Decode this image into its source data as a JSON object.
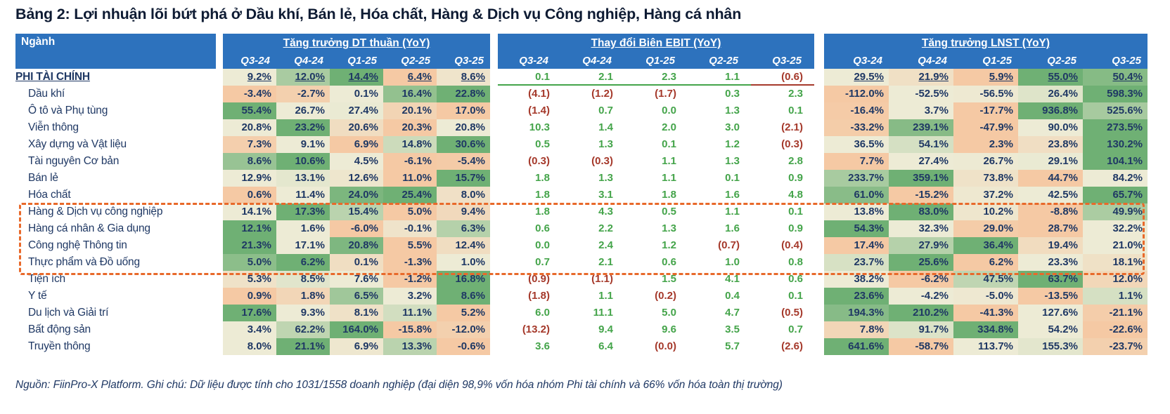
{
  "title": "Bảng 2: Lợi nhuận lõi bứt phá ở Dầu khí, Bán lẻ, Hóa chất, Hàng & Dịch vụ Công nghiệp, Hàng cá nhân",
  "footer": "Nguồn: FiinPro-X Platform. Ghi chú: Dữ liệu được tính cho 1031/1558 doanh nghiệp (đại diện 98,9% vốn hóa nhóm Phi tài chính và 66% vốn hóa toàn thị trường)",
  "colors": {
    "header_blue": "#2D72BD",
    "navy_text": "#1F3864",
    "positive_green_text": "#44A44A",
    "negative_red_text": "#A5392B",
    "heat_min_peach": "#F5C9A4",
    "heat_mid_cream": "#EDEBD5",
    "heat_max_green": "#6FB074",
    "highlight_dash_orange": "#E8692A"
  },
  "chart_data": {
    "type": "table",
    "subtype": "heatmap-table",
    "corner_label": "Ngành",
    "groups": [
      {
        "title": "Tăng trưởng DT thuần (YoY)",
        "columns": [
          "Q3-24",
          "Q4-24",
          "Q1-25",
          "Q2-25",
          "Q3-25"
        ]
      },
      {
        "title": "Thay đổi Biên EBIT (YoY)",
        "columns": [
          "Q3-24",
          "Q4-24",
          "Q1-25",
          "Q2-25",
          "Q3-25"
        ]
      },
      {
        "title": "Tăng trưởng LNST (YoY)",
        "columns": [
          "Q3-24",
          "Q4-24",
          "Q1-25",
          "Q2-25",
          "Q3-25"
        ]
      }
    ],
    "heatmap_note": "groups 1 and 3 use a per-row 3-color scale (min=peach, median=cream, max=green); group 2 has white cells with green text for positive and dark-red parenthesized text for negative",
    "rows": [
      {
        "name": "PHI TÀI CHÍNH",
        "emphasis": true,
        "highlighted": false,
        "revenue": [
          "9.2%",
          "12.0%",
          "14.4%",
          "6.4%",
          "8.6%"
        ],
        "ebit": [
          "0.1",
          "2.1",
          "2.3",
          "1.1",
          "(0.6)"
        ],
        "lnst": [
          "29.5%",
          "21.9%",
          "5.9%",
          "55.0%",
          "50.4%"
        ]
      },
      {
        "name": "Dầu khí",
        "emphasis": false,
        "highlighted": false,
        "revenue": [
          "-3.4%",
          "-2.7%",
          "0.1%",
          "16.4%",
          "22.8%"
        ],
        "ebit": [
          "(4.1)",
          "(1.2)",
          "(1.7)",
          "0.3",
          "2.3"
        ],
        "lnst": [
          "-112.0%",
          "-52.5%",
          "-56.5%",
          "26.4%",
          "598.3%"
        ]
      },
      {
        "name": "Ô tô và Phụ tùng",
        "emphasis": false,
        "highlighted": false,
        "revenue": [
          "55.4%",
          "26.7%",
          "27.4%",
          "20.1%",
          "17.0%"
        ],
        "ebit": [
          "(1.4)",
          "0.7",
          "0.0",
          "1.3",
          "0.1"
        ],
        "lnst": [
          "-16.4%",
          "3.7%",
          "-17.7%",
          "936.8%",
          "525.6%"
        ]
      },
      {
        "name": "Viễn thông",
        "emphasis": false,
        "highlighted": false,
        "revenue": [
          "20.8%",
          "23.2%",
          "20.6%",
          "20.3%",
          "20.8%"
        ],
        "ebit": [
          "10.3",
          "1.4",
          "2.0",
          "3.0",
          "(2.1)"
        ],
        "lnst": [
          "-33.2%",
          "239.1%",
          "-47.9%",
          "90.0%",
          "273.5%"
        ]
      },
      {
        "name": "Xây dựng và Vật liệu",
        "emphasis": false,
        "highlighted": false,
        "revenue": [
          "7.3%",
          "9.1%",
          "6.9%",
          "14.8%",
          "30.6%"
        ],
        "ebit": [
          "0.5",
          "1.3",
          "0.1",
          "1.2",
          "(0.3)"
        ],
        "lnst": [
          "36.5%",
          "54.1%",
          "2.3%",
          "23.8%",
          "130.2%"
        ]
      },
      {
        "name": "Tài nguyên Cơ bản",
        "emphasis": false,
        "highlighted": false,
        "revenue": [
          "8.6%",
          "10.6%",
          "4.5%",
          "-6.1%",
          "-5.4%"
        ],
        "ebit": [
          "(0.3)",
          "(0.3)",
          "1.1",
          "1.3",
          "2.8"
        ],
        "lnst": [
          "7.7%",
          "27.4%",
          "26.7%",
          "29.1%",
          "104.1%"
        ]
      },
      {
        "name": "Bán lẻ",
        "emphasis": false,
        "highlighted": true,
        "revenue": [
          "12.9%",
          "13.1%",
          "12.6%",
          "11.0%",
          "15.7%"
        ],
        "ebit": [
          "1.8",
          "1.3",
          "1.1",
          "0.1",
          "0.9"
        ],
        "lnst": [
          "233.7%",
          "359.1%",
          "73.8%",
          "44.7%",
          "84.2%"
        ]
      },
      {
        "name": "Hóa chất",
        "emphasis": false,
        "highlighted": true,
        "revenue": [
          "0.6%",
          "11.4%",
          "24.0%",
          "25.4%",
          "8.0%"
        ],
        "ebit": [
          "1.8",
          "3.1",
          "1.8",
          "1.6",
          "4.8"
        ],
        "lnst": [
          "61.0%",
          "-15.2%",
          "37.2%",
          "42.5%",
          "65.7%"
        ]
      },
      {
        "name": "Hàng & Dịch vụ công nghiệp",
        "emphasis": false,
        "highlighted": true,
        "revenue": [
          "14.1%",
          "17.3%",
          "15.4%",
          "5.0%",
          "9.4%"
        ],
        "ebit": [
          "1.8",
          "4.3",
          "0.5",
          "1.1",
          "0.1"
        ],
        "lnst": [
          "13.8%",
          "83.0%",
          "10.2%",
          "-8.8%",
          "49.9%"
        ]
      },
      {
        "name": "Hàng cá nhân & Gia dụng",
        "emphasis": false,
        "highlighted": true,
        "revenue": [
          "12.1%",
          "1.6%",
          "-6.0%",
          "-0.1%",
          "6.3%"
        ],
        "ebit": [
          "0.6",
          "2.2",
          "1.3",
          "1.6",
          "0.9"
        ],
        "lnst": [
          "54.3%",
          "32.3%",
          "29.0%",
          "28.7%",
          "32.2%"
        ]
      },
      {
        "name": "Công nghệ Thông tin",
        "emphasis": false,
        "highlighted": false,
        "revenue": [
          "21.3%",
          "17.1%",
          "20.8%",
          "5.5%",
          "12.4%"
        ],
        "ebit": [
          "0.0",
          "2.4",
          "1.2",
          "(0.7)",
          "(0.4)"
        ],
        "lnst": [
          "17.4%",
          "27.9%",
          "36.4%",
          "19.4%",
          "21.0%"
        ]
      },
      {
        "name": "Thực phẩm và Đồ uống",
        "emphasis": false,
        "highlighted": false,
        "revenue": [
          "5.0%",
          "6.2%",
          "0.1%",
          "-1.3%",
          "1.0%"
        ],
        "ebit": [
          "0.7",
          "2.1",
          "0.6",
          "1.0",
          "0.8"
        ],
        "lnst": [
          "23.7%",
          "25.6%",
          "6.2%",
          "23.3%",
          "18.1%"
        ]
      },
      {
        "name": "Tiện ích",
        "emphasis": false,
        "highlighted": false,
        "revenue": [
          "5.3%",
          "8.5%",
          "7.6%",
          "-1.2%",
          "16.8%"
        ],
        "ebit": [
          "(0.9)",
          "(1.1)",
          "1.5",
          "4.1",
          "0.6"
        ],
        "lnst": [
          "38.2%",
          "-6.2%",
          "47.5%",
          "63.7%",
          "12.0%"
        ]
      },
      {
        "name": "Y tế",
        "emphasis": false,
        "highlighted": false,
        "revenue": [
          "0.9%",
          "1.8%",
          "6.5%",
          "3.2%",
          "8.6%"
        ],
        "ebit": [
          "(1.8)",
          "1.1",
          "(0.2)",
          "0.4",
          "0.1"
        ],
        "lnst": [
          "23.6%",
          "-4.2%",
          "-5.0%",
          "-13.5%",
          "1.1%"
        ]
      },
      {
        "name": "Du lịch và Giải trí",
        "emphasis": false,
        "highlighted": false,
        "revenue": [
          "17.6%",
          "9.3%",
          "8.1%",
          "11.1%",
          "5.2%"
        ],
        "ebit": [
          "6.0",
          "11.1",
          "5.0",
          "4.7",
          "(0.5)"
        ],
        "lnst": [
          "194.3%",
          "210.2%",
          "-41.3%",
          "127.6%",
          "-21.1%"
        ]
      },
      {
        "name": "Bất động sản",
        "emphasis": false,
        "highlighted": false,
        "revenue": [
          "3.4%",
          "62.2%",
          "164.0%",
          "-15.8%",
          "-12.0%"
        ],
        "ebit": [
          "(13.2)",
          "9.4",
          "9.6",
          "3.5",
          "0.7"
        ],
        "lnst": [
          "7.8%",
          "91.7%",
          "334.8%",
          "54.2%",
          "-22.6%"
        ]
      },
      {
        "name": "Truyền thông",
        "emphasis": false,
        "highlighted": false,
        "revenue": [
          "8.0%",
          "21.1%",
          "6.9%",
          "13.3%",
          "-0.6%"
        ],
        "ebit": [
          "3.6",
          "6.4",
          "(0.0)",
          "5.7",
          "(2.6)"
        ],
        "lnst": [
          "641.6%",
          "-58.7%",
          "113.7%",
          "155.3%",
          "-23.7%"
        ]
      }
    ]
  }
}
